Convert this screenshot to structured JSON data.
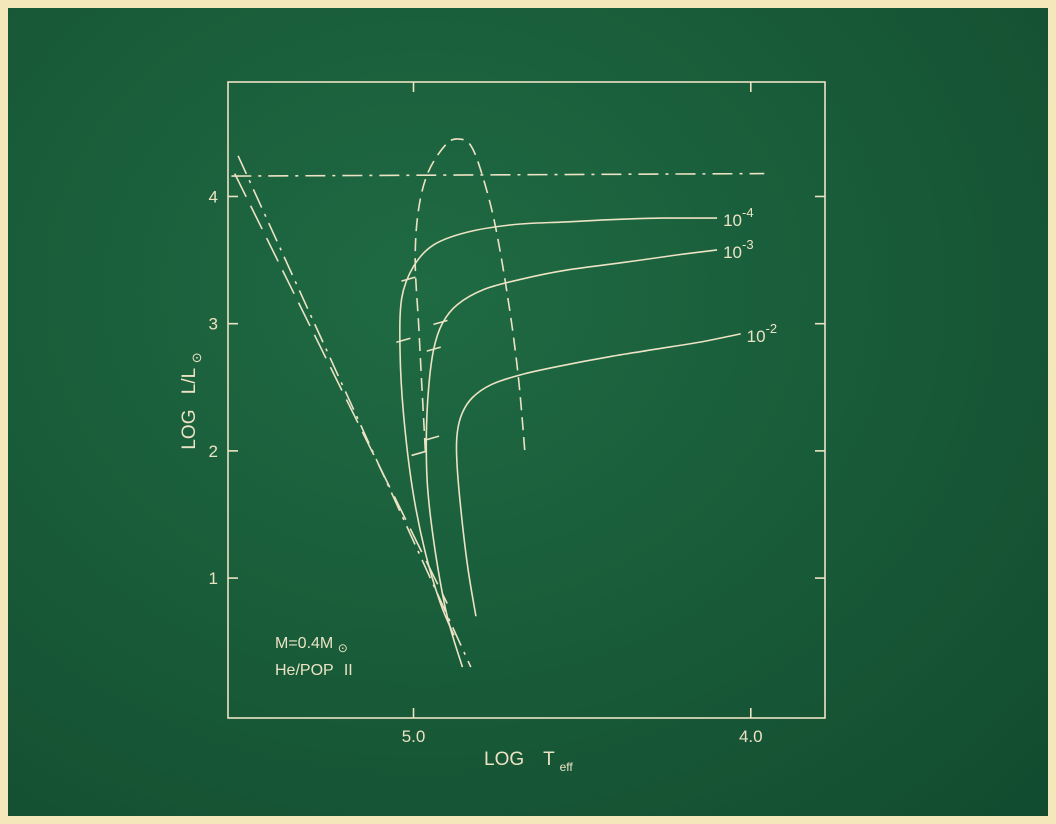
{
  "colors": {
    "background": "#185a38",
    "ink": "#ece3c4",
    "border": "#f4e7b9"
  },
  "chart_data": {
    "type": "line",
    "xlabel_main": "LOG",
    "xlabel_sym": "T",
    "xlabel_sub": "eff",
    "ylabel_main": "LOG",
    "ylabel_frac": "L/L",
    "ylabel_sub": "⊙",
    "x_axis_reversed": true,
    "xlim": [
      5.55,
      3.78
    ],
    "ylim": [
      -0.1,
      4.9
    ],
    "xticks": [
      5.0,
      4.0
    ],
    "xtick_labels": [
      "5.0",
      "4.0"
    ],
    "yticks": [
      1,
      2,
      3,
      4
    ],
    "ytick_labels": [
      "1",
      "2",
      "3",
      "4"
    ],
    "annotation_mass": "M=0.4M",
    "annotation_mass_sym": "⊙",
    "annotation_comp": "He/POP",
    "annotation_comp_roman": "II",
    "series": [
      {
        "label_base": "10",
        "label_exp": "-4",
        "style": "solid",
        "x": [
          4.88,
          4.92,
          4.965,
          5.003,
          5.03,
          5.04,
          5.035,
          5.0,
          4.94,
          4.84,
          4.7,
          4.55,
          4.4,
          4.26,
          4.1
        ],
        "y": [
          0.55,
          0.8,
          1.2,
          1.7,
          2.3,
          2.8,
          3.2,
          3.45,
          3.62,
          3.72,
          3.78,
          3.8,
          3.82,
          3.83,
          3.83
        ],
        "ticks": [
          {
            "x": 5.015,
            "y": 3.35
          },
          {
            "x": 5.03,
            "y": 2.87
          },
          {
            "x": 4.985,
            "y": 1.98
          }
        ]
      },
      {
        "label_base": "10",
        "label_exp": "-3",
        "style": "solid",
        "x": [
          4.855,
          4.9,
          4.935,
          4.958,
          4.962,
          4.955,
          4.94,
          4.915,
          4.87,
          4.79,
          4.68,
          4.55,
          4.38,
          4.22,
          4.1
        ],
        "y": [
          0.3,
          0.7,
          1.2,
          1.7,
          2.1,
          2.5,
          2.8,
          3.0,
          3.15,
          3.27,
          3.35,
          3.42,
          3.48,
          3.54,
          3.58
        ],
        "ticks": [
          {
            "x": 4.92,
            "y": 3.01
          },
          {
            "x": 4.94,
            "y": 2.8
          },
          {
            "x": 4.945,
            "y": 2.1
          }
        ]
      },
      {
        "label_base": "10",
        "label_exp": "-2",
        "style": "solid",
        "x": [
          4.815,
          4.84,
          4.862,
          4.872,
          4.87,
          4.855,
          4.825,
          4.77,
          4.68,
          4.56,
          4.42,
          4.28,
          4.14,
          4.03
        ],
        "y": [
          0.7,
          1.1,
          1.6,
          1.95,
          2.15,
          2.3,
          2.42,
          2.52,
          2.6,
          2.67,
          2.74,
          2.8,
          2.86,
          2.92
        ],
        "ticks": []
      },
      {
        "label_base": "",
        "label_exp": "",
        "style": "dashed",
        "x": [
          4.965,
          4.975,
          4.985,
          4.995,
          4.985,
          4.955,
          4.9,
          4.86,
          4.83,
          4.8,
          4.76,
          4.72,
          4.69,
          4.67
        ],
        "y": [
          2.0,
          2.5,
          3.0,
          3.5,
          3.9,
          4.2,
          4.42,
          4.45,
          4.4,
          4.2,
          3.8,
          3.2,
          2.6,
          2.0
        ],
        "ticks": []
      },
      {
        "label_base": "",
        "label_exp": "",
        "style": "dashdot",
        "x": [
          5.52,
          4.83
        ],
        "y": [
          4.32,
          0.3
        ],
        "ticks": []
      },
      {
        "label_base": "",
        "label_exp": "",
        "style": "longdash",
        "x": [
          5.53,
          4.9
        ],
        "y": [
          4.18,
          0.8
        ],
        "ticks": []
      },
      {
        "label_base": "",
        "label_exp": "",
        "style": "dashdot",
        "x": [
          5.54,
          3.96
        ],
        "y": [
          4.16,
          4.18
        ],
        "ticks": []
      }
    ]
  }
}
